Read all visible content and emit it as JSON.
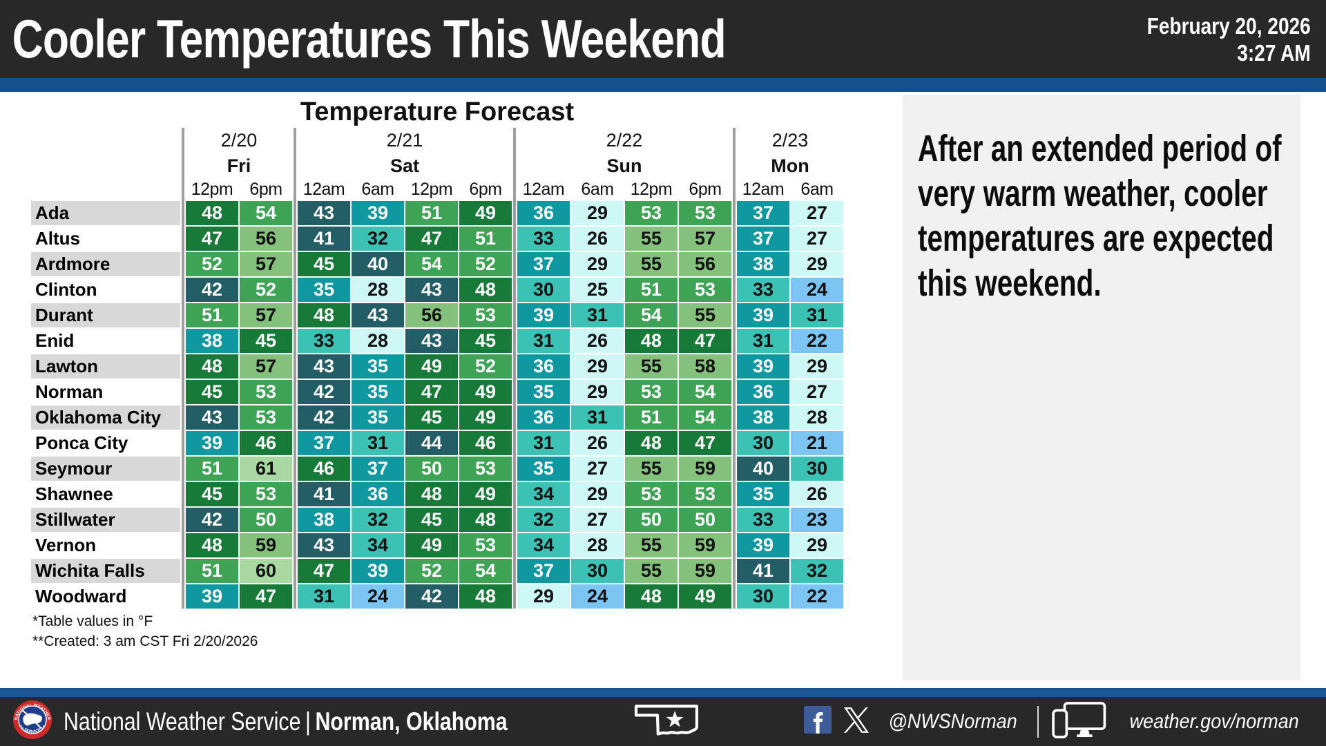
{
  "header": {
    "title": "Cooler Temperatures This Weekend",
    "date": "February 20, 2026",
    "time": "3:27 AM"
  },
  "table": {
    "title": "Temperature Forecast",
    "day_groups": [
      {
        "date": "2/20",
        "day": "Fri",
        "times": [
          "12pm",
          "6pm"
        ]
      },
      {
        "date": "2/21",
        "day": "Sat",
        "times": [
          "12am",
          "6am",
          "12pm",
          "6pm"
        ]
      },
      {
        "date": "2/22",
        "day": "Sun",
        "times": [
          "12am",
          "6am",
          "12pm",
          "6pm"
        ]
      },
      {
        "date": "2/23",
        "day": "Mon",
        "times": [
          "12am",
          "6am"
        ]
      }
    ],
    "rows": [
      {
        "city": "Ada",
        "values": [
          48,
          54,
          43,
          39,
          51,
          49,
          36,
          29,
          53,
          53,
          37,
          27
        ]
      },
      {
        "city": "Altus",
        "values": [
          47,
          56,
          41,
          32,
          47,
          51,
          33,
          26,
          55,
          57,
          37,
          27
        ]
      },
      {
        "city": "Ardmore",
        "values": [
          52,
          57,
          45,
          40,
          54,
          52,
          37,
          29,
          55,
          56,
          38,
          29
        ]
      },
      {
        "city": "Clinton",
        "values": [
          42,
          52,
          35,
          28,
          43,
          48,
          30,
          25,
          51,
          53,
          33,
          24
        ]
      },
      {
        "city": "Durant",
        "values": [
          51,
          57,
          48,
          43,
          56,
          53,
          39,
          31,
          54,
          55,
          39,
          31
        ]
      },
      {
        "city": "Enid",
        "values": [
          38,
          45,
          33,
          28,
          43,
          45,
          31,
          26,
          48,
          47,
          31,
          22
        ]
      },
      {
        "city": "Lawton",
        "values": [
          48,
          57,
          43,
          35,
          49,
          52,
          36,
          29,
          55,
          58,
          39,
          29
        ]
      },
      {
        "city": "Norman",
        "values": [
          45,
          53,
          42,
          35,
          47,
          49,
          35,
          29,
          53,
          54,
          36,
          27
        ]
      },
      {
        "city": "Oklahoma City",
        "values": [
          43,
          53,
          42,
          35,
          45,
          49,
          36,
          31,
          51,
          54,
          38,
          28
        ]
      },
      {
        "city": "Ponca City",
        "values": [
          39,
          46,
          37,
          31,
          44,
          46,
          31,
          26,
          48,
          47,
          30,
          21
        ]
      },
      {
        "city": "Seymour",
        "values": [
          51,
          61,
          46,
          37,
          50,
          53,
          35,
          27,
          55,
          59,
          40,
          30
        ]
      },
      {
        "city": "Shawnee",
        "values": [
          45,
          53,
          41,
          36,
          48,
          49,
          34,
          29,
          53,
          53,
          35,
          26
        ]
      },
      {
        "city": "Stillwater",
        "values": [
          42,
          50,
          38,
          32,
          45,
          48,
          32,
          27,
          50,
          50,
          33,
          23
        ]
      },
      {
        "city": "Vernon",
        "values": [
          48,
          59,
          43,
          34,
          49,
          53,
          34,
          28,
          55,
          59,
          39,
          29
        ]
      },
      {
        "city": "Wichita Falls",
        "values": [
          51,
          60,
          47,
          39,
          52,
          54,
          37,
          30,
          55,
          59,
          41,
          32
        ]
      },
      {
        "city": "Woodward",
        "values": [
          39,
          47,
          31,
          24,
          42,
          48,
          29,
          24,
          48,
          49,
          30,
          22
        ]
      }
    ],
    "footnotes": [
      "*Table values in °F",
      "**Created: 3 am CST Fri 2/20/2026"
    ],
    "color_scale": [
      {
        "min": 60,
        "max": 69,
        "bg": "#aad8a3",
        "fg": "#111111"
      },
      {
        "min": 55,
        "max": 59,
        "bg": "#83c17c",
        "fg": "#111111"
      },
      {
        "min": 50,
        "max": 54,
        "bg": "#3fa355",
        "fg": "#ffffff"
      },
      {
        "min": 45,
        "max": 49,
        "bg": "#187a38",
        "fg": "#ffffff"
      },
      {
        "min": 40,
        "max": 44,
        "bg": "#235e67",
        "fg": "#ffffff"
      },
      {
        "min": 35,
        "max": 39,
        "bg": "#0f98a0",
        "fg": "#ffffff"
      },
      {
        "min": 30,
        "max": 34,
        "bg": "#3bc2b4",
        "fg": "#111111"
      },
      {
        "min": 25,
        "max": 29,
        "bg": "#cdf8f6",
        "fg": "#111111"
      },
      {
        "min": 20,
        "max": 24,
        "bg": "#7cc4f1",
        "fg": "#111111"
      }
    ]
  },
  "sidebar": {
    "text": "After an extended period of very warm weather, cooler temperatures are expected this weekend."
  },
  "footer": {
    "agency": "National Weather Service",
    "divider": "|",
    "office": "Norman, Oklahoma",
    "handle": "@NWSNorman",
    "url": "weather.gov/norman",
    "icons": [
      "nws-logo",
      "oklahoma-state-icon",
      "facebook-icon",
      "x-icon",
      "devices-icon"
    ]
  },
  "colors": {
    "header_bg": "#282828",
    "top_strip": "#15508c",
    "bottom_strip": "#1d5795",
    "sidebar_bg": "#f1f1f2",
    "row_stripe": "#d8d8d8",
    "group_separator": "#9e9e9e",
    "facebook_blue": "#3e5c9a"
  },
  "chart_data": {
    "type": "heatmap",
    "title": "Temperature Forecast",
    "units": "°F",
    "columns": [
      "Fri 2/20 12pm",
      "Fri 2/20 6pm",
      "Sat 2/21 12am",
      "Sat 2/21 6am",
      "Sat 2/21 12pm",
      "Sat 2/21 6pm",
      "Sun 2/22 12am",
      "Sun 2/22 6am",
      "Sun 2/22 12pm",
      "Sun 2/22 6pm",
      "Mon 2/23 12am",
      "Mon 2/23 6am"
    ],
    "rows": [
      "Ada",
      "Altus",
      "Ardmore",
      "Clinton",
      "Durant",
      "Enid",
      "Lawton",
      "Norman",
      "Oklahoma City",
      "Ponca City",
      "Seymour",
      "Shawnee",
      "Stillwater",
      "Vernon",
      "Wichita Falls",
      "Woodward"
    ],
    "values": [
      [
        48,
        54,
        43,
        39,
        51,
        49,
        36,
        29,
        53,
        53,
        37,
        27
      ],
      [
        47,
        56,
        41,
        32,
        47,
        51,
        33,
        26,
        55,
        57,
        37,
        27
      ],
      [
        52,
        57,
        45,
        40,
        54,
        52,
        37,
        29,
        55,
        56,
        38,
        29
      ],
      [
        42,
        52,
        35,
        28,
        43,
        48,
        30,
        25,
        51,
        53,
        33,
        24
      ],
      [
        51,
        57,
        48,
        43,
        56,
        53,
        39,
        31,
        54,
        55,
        39,
        31
      ],
      [
        38,
        45,
        33,
        28,
        43,
        45,
        31,
        26,
        48,
        47,
        31,
        22
      ],
      [
        48,
        57,
        43,
        35,
        49,
        52,
        36,
        29,
        55,
        58,
        39,
        29
      ],
      [
        45,
        53,
        42,
        35,
        47,
        49,
        35,
        29,
        53,
        54,
        36,
        27
      ],
      [
        43,
        53,
        42,
        35,
        45,
        49,
        36,
        31,
        51,
        54,
        38,
        28
      ],
      [
        39,
        46,
        37,
        31,
        44,
        46,
        31,
        26,
        48,
        47,
        30,
        21
      ],
      [
        51,
        61,
        46,
        37,
        50,
        53,
        35,
        27,
        55,
        59,
        40,
        30
      ],
      [
        45,
        53,
        41,
        36,
        48,
        49,
        34,
        29,
        53,
        53,
        35,
        26
      ],
      [
        42,
        50,
        38,
        32,
        45,
        48,
        32,
        27,
        50,
        50,
        33,
        23
      ],
      [
        48,
        59,
        43,
        34,
        49,
        53,
        34,
        28,
        55,
        59,
        39,
        29
      ],
      [
        51,
        60,
        47,
        39,
        52,
        54,
        37,
        30,
        55,
        59,
        41,
        32
      ],
      [
        39,
        47,
        31,
        24,
        42,
        48,
        29,
        24,
        48,
        49,
        30,
        22
      ]
    ],
    "legend_position": "none",
    "grid": false
  }
}
